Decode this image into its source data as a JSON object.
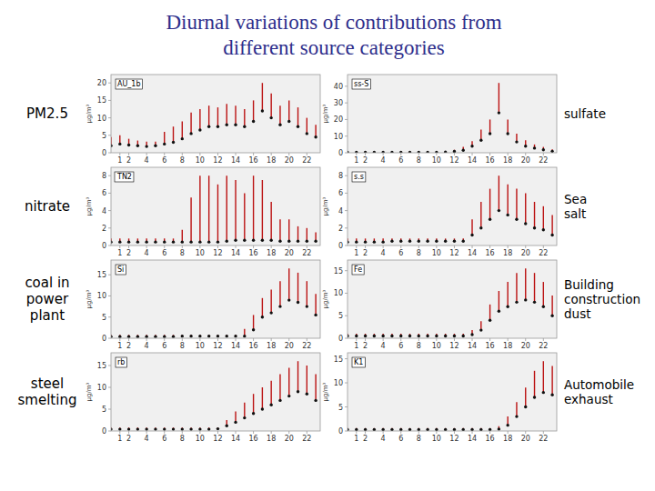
{
  "chart_data": [
    {
      "type": "range",
      "figure_title": [
        "Diurnal variations of contributions from",
        "different source categories"
      ],
      "title": "AU_1b",
      "side_label": "PM2.5",
      "ylabel": "μg/m³",
      "color": "#bb1111",
      "grid": false,
      "x": [
        0,
        1,
        2,
        3,
        4,
        5,
        6,
        7,
        8,
        9,
        10,
        11,
        12,
        13,
        14,
        15,
        16,
        17,
        18,
        19,
        20,
        21,
        22,
        23
      ],
      "xlim": [
        0,
        23.5
      ],
      "xticks": [
        1,
        2,
        4,
        6,
        8,
        10,
        12,
        14,
        16,
        18,
        20,
        22
      ],
      "ylim": [
        0,
        22.4
      ],
      "yticks": [
        0,
        5,
        10,
        15,
        20
      ],
      "series": [
        {
          "color": "#111111",
          "marker": "circle",
          "values": [
            2.0,
            2.5,
            2.2,
            2.0,
            1.8,
            2.0,
            2.5,
            3.0,
            4.0,
            5.5,
            6.5,
            7.5,
            7.5,
            8.0,
            8.0,
            7.5,
            9.0,
            12.0,
            10.0,
            8.0,
            9.0,
            7.5,
            5.5,
            4.5
          ],
          "upper": [
            4.5,
            5.0,
            4.0,
            3.5,
            3.2,
            3.2,
            6.0,
            7.5,
            9.0,
            11.5,
            12.5,
            13.5,
            13.0,
            14.0,
            13.5,
            12.5,
            15.0,
            20.0,
            17.0,
            13.5,
            15.0,
            13.0,
            10.0,
            8.0
          ]
        }
      ]
    },
    {
      "type": "range",
      "title": "ss-S",
      "side_label": "sulfate",
      "ylabel": "μg/m³",
      "color": "#bb1111",
      "grid": false,
      "x": [
        0,
        1,
        2,
        3,
        4,
        5,
        6,
        7,
        8,
        9,
        10,
        11,
        12,
        13,
        14,
        15,
        16,
        17,
        18,
        19,
        20,
        21,
        22,
        23
      ],
      "xlim": [
        0,
        23.5
      ],
      "xticks": [
        1,
        2,
        4,
        6,
        8,
        10,
        12,
        14,
        16,
        18,
        20,
        22
      ],
      "ylim": [
        0,
        47.04
      ],
      "yticks": [
        0,
        10,
        20,
        30,
        40
      ],
      "series": [
        {
          "color": "#111111",
          "marker": "circle",
          "values": [
            0.3,
            0.3,
            0.3,
            0.3,
            0.3,
            0.3,
            0.3,
            0.3,
            0.3,
            0.3,
            0.3,
            0.4,
            0.8,
            1.5,
            4.0,
            7.5,
            11.5,
            24.0,
            11.5,
            6.5,
            4.0,
            2.8,
            1.8,
            0.9
          ],
          "upper": [
            0.8,
            0.8,
            0.8,
            0.8,
            0.8,
            0.8,
            0.8,
            0.8,
            0.8,
            0.8,
            0.8,
            0.9,
            1.8,
            3.5,
            7.0,
            14.0,
            20.0,
            42.0,
            20.0,
            11.5,
            7.5,
            5.0,
            3.5,
            2.0
          ]
        }
      ]
    },
    {
      "type": "range",
      "title": "TN2",
      "side_label": "nitrate",
      "ylabel": "μg/m³",
      "color": "#bb1111",
      "grid": false,
      "x": [
        0,
        1,
        2,
        3,
        4,
        5,
        6,
        7,
        8,
        9,
        10,
        11,
        12,
        13,
        14,
        15,
        16,
        17,
        18,
        19,
        20,
        21,
        22,
        23
      ],
      "xlim": [
        0,
        23.5
      ],
      "xticks": [
        1,
        2,
        4,
        6,
        8,
        10,
        12,
        14,
        16,
        18,
        20,
        22
      ],
      "ylim": [
        0,
        8.96
      ],
      "yticks": [
        0,
        2,
        4,
        6,
        8
      ],
      "series": [
        {
          "color": "#111111",
          "marker": "circle",
          "values": [
            0.4,
            0.4,
            0.4,
            0.4,
            0.4,
            0.4,
            0.4,
            0.4,
            0.4,
            0.4,
            0.4,
            0.4,
            0.4,
            0.5,
            0.6,
            0.6,
            0.6,
            0.6,
            0.6,
            0.5,
            0.5,
            0.5,
            0.5,
            0.5
          ],
          "upper": [
            0.8,
            0.8,
            0.8,
            0.8,
            0.8,
            0.8,
            0.8,
            0.8,
            1.8,
            5.5,
            8.0,
            8.0,
            7.0,
            8.0,
            7.5,
            6.0,
            8.0,
            7.5,
            5.0,
            3.0,
            3.0,
            2.2,
            2.0,
            1.5
          ]
        }
      ]
    },
    {
      "type": "range",
      "title": "s.s",
      "side_label": "Sea\nsalt",
      "ylabel": "μg/m³",
      "color": "#bb1111",
      "grid": false,
      "x": [
        0,
        1,
        2,
        3,
        4,
        5,
        6,
        7,
        8,
        9,
        10,
        11,
        12,
        13,
        14,
        15,
        16,
        17,
        18,
        19,
        20,
        21,
        22,
        23
      ],
      "xlim": [
        0,
        23.5
      ],
      "xticks": [
        1,
        2,
        4,
        6,
        8,
        10,
        12,
        14,
        16,
        18,
        20,
        22
      ],
      "ylim": [
        0,
        8.96
      ],
      "yticks": [
        0,
        2,
        4,
        6,
        8
      ],
      "series": [
        {
          "color": "#111111",
          "marker": "circle",
          "values": [
            0.4,
            0.4,
            0.4,
            0.4,
            0.4,
            0.5,
            0.5,
            0.5,
            0.5,
            0.5,
            0.5,
            0.5,
            0.5,
            0.5,
            1.2,
            2.0,
            3.0,
            4.0,
            3.5,
            3.0,
            2.5,
            2.0,
            1.8,
            1.2
          ],
          "upper": [
            0.8,
            0.8,
            0.8,
            0.8,
            0.8,
            0.8,
            0.8,
            0.8,
            0.8,
            0.8,
            0.8,
            0.8,
            0.8,
            0.8,
            3.0,
            5.0,
            6.5,
            8.0,
            7.0,
            6.5,
            6.0,
            5.0,
            4.5,
            3.5
          ]
        }
      ]
    },
    {
      "type": "range",
      "title": "Si",
      "side_label": "coal in\npower\nplant",
      "ylabel": "μg/m³",
      "color": "#bb1111",
      "grid": false,
      "x": [
        0,
        1,
        2,
        3,
        4,
        5,
        6,
        7,
        8,
        9,
        10,
        11,
        12,
        13,
        14,
        15,
        16,
        17,
        18,
        19,
        20,
        21,
        22,
        23
      ],
      "xlim": [
        0,
        23.5
      ],
      "xticks": [
        1,
        2,
        4,
        6,
        8,
        10,
        12,
        14,
        16,
        18,
        20,
        22
      ],
      "ylim": [
        0,
        18.48
      ],
      "yticks": [
        0,
        5,
        10,
        15
      ],
      "series": [
        {
          "color": "#111111",
          "marker": "circle",
          "values": [
            0.4,
            0.4,
            0.4,
            0.4,
            0.4,
            0.4,
            0.4,
            0.4,
            0.5,
            0.5,
            0.5,
            0.5,
            0.5,
            0.5,
            0.5,
            0.5,
            2.0,
            5.0,
            6.0,
            7.5,
            9.0,
            8.5,
            7.5,
            5.5
          ],
          "upper": [
            0.8,
            0.8,
            0.8,
            0.8,
            0.8,
            0.8,
            0.8,
            0.8,
            0.8,
            0.8,
            0.8,
            0.8,
            0.8,
            0.8,
            0.8,
            2.2,
            5.5,
            9.5,
            11.5,
            13.5,
            16.5,
            15.5,
            13.5,
            10.5
          ]
        }
      ]
    },
    {
      "type": "range",
      "title": "Fe",
      "side_label": "Building\nconstruction\ndust",
      "ylabel": "μg/m³",
      "color": "#bb1111",
      "grid": false,
      "x": [
        0,
        1,
        2,
        3,
        4,
        5,
        6,
        7,
        8,
        9,
        10,
        11,
        12,
        13,
        14,
        15,
        16,
        17,
        18,
        19,
        20,
        21,
        22,
        23
      ],
      "xlim": [
        0,
        23.5
      ],
      "xticks": [
        1,
        2,
        4,
        6,
        8,
        10,
        12,
        14,
        16,
        18,
        20,
        22
      ],
      "ylim": [
        0,
        17.36
      ],
      "yticks": [
        0,
        5,
        10,
        15
      ],
      "series": [
        {
          "color": "#111111",
          "marker": "circle",
          "values": [
            0.5,
            0.5,
            0.5,
            0.5,
            0.5,
            0.5,
            0.5,
            0.5,
            0.5,
            0.5,
            0.5,
            0.5,
            0.5,
            0.5,
            0.8,
            1.8,
            4.0,
            6.0,
            7.0,
            8.0,
            8.5,
            8.0,
            7.0,
            5.0
          ],
          "upper": [
            1.0,
            1.0,
            1.0,
            1.0,
            1.0,
            1.0,
            1.0,
            1.0,
            1.0,
            1.0,
            1.0,
            1.0,
            1.0,
            1.0,
            1.8,
            3.8,
            7.5,
            10.5,
            12.5,
            14.5,
            15.5,
            14.5,
            12.5,
            9.5
          ]
        }
      ]
    },
    {
      "type": "range",
      "title": "rb",
      "side_label": "steel\nsmelting",
      "ylabel": "μg/m³",
      "color": "#bb1111",
      "grid": false,
      "x": [
        0,
        1,
        2,
        3,
        4,
        5,
        6,
        7,
        8,
        9,
        10,
        11,
        12,
        13,
        14,
        15,
        16,
        17,
        18,
        19,
        20,
        21,
        22,
        23
      ],
      "xlim": [
        0,
        23.5
      ],
      "xticks": [
        1,
        2,
        4,
        6,
        8,
        10,
        12,
        14,
        16,
        18,
        20,
        22
      ],
      "ylim": [
        0,
        17.92
      ],
      "yticks": [
        0,
        5,
        10,
        15
      ],
      "series": [
        {
          "color": "#111111",
          "marker": "circle",
          "values": [
            0.4,
            0.4,
            0.4,
            0.4,
            0.4,
            0.4,
            0.4,
            0.4,
            0.4,
            0.4,
            0.4,
            0.4,
            0.5,
            1.2,
            2.0,
            3.0,
            4.0,
            5.0,
            6.0,
            7.0,
            8.0,
            9.0,
            8.5,
            7.0
          ],
          "upper": [
            0.8,
            0.8,
            0.8,
            0.8,
            0.8,
            0.8,
            0.8,
            0.8,
            0.8,
            0.8,
            0.8,
            0.8,
            0.8,
            2.5,
            4.5,
            6.5,
            8.5,
            10.0,
            11.5,
            13.0,
            14.5,
            16.0,
            15.0,
            13.0
          ]
        }
      ]
    },
    {
      "type": "range",
      "title": "K1",
      "side_label": "Automobile\nexhaust",
      "ylabel": "μg/m³",
      "color": "#bb1111",
      "grid": false,
      "x": [
        0,
        1,
        2,
        3,
        4,
        5,
        6,
        7,
        8,
        9,
        10,
        11,
        12,
        13,
        14,
        15,
        16,
        17,
        18,
        19,
        20,
        21,
        22,
        23
      ],
      "xlim": [
        0,
        23.5
      ],
      "xticks": [
        1,
        2,
        4,
        6,
        8,
        10,
        12,
        14,
        16,
        18,
        20,
        22
      ],
      "ylim": [
        0,
        16.24
      ],
      "yticks": [
        0,
        5,
        10,
        15
      ],
      "series": [
        {
          "color": "#111111",
          "marker": "circle",
          "values": [
            0.3,
            0.3,
            0.3,
            0.3,
            0.3,
            0.3,
            0.3,
            0.3,
            0.3,
            0.3,
            0.3,
            0.3,
            0.3,
            0.3,
            0.3,
            0.3,
            0.3,
            0.4,
            1.2,
            3.0,
            5.0,
            7.0,
            8.0,
            7.5
          ],
          "upper": [
            0.6,
            0.6,
            0.6,
            0.6,
            0.6,
            0.6,
            0.6,
            0.6,
            0.6,
            0.6,
            0.6,
            0.6,
            0.6,
            0.6,
            0.6,
            0.6,
            0.6,
            1.0,
            3.0,
            6.0,
            9.0,
            12.5,
            14.5,
            13.5
          ]
        }
      ]
    }
  ]
}
